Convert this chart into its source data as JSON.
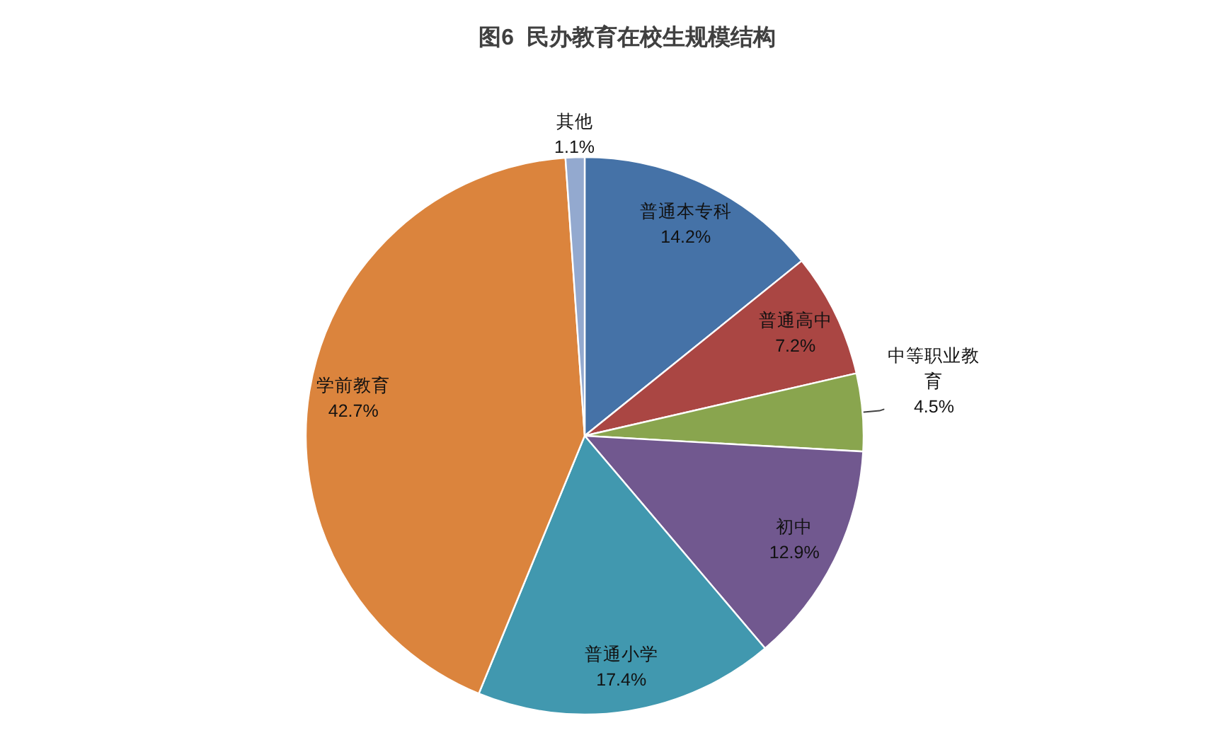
{
  "chart_data": {
    "type": "pie",
    "title": "图6  民办教育在校生规模结构",
    "categories": [
      "普通本专科",
      "普通高中",
      "中等职业教育",
      "初中",
      "普通小学",
      "学前教育",
      "其他"
    ],
    "values": [
      14.2,
      7.2,
      4.5,
      12.9,
      17.4,
      42.7,
      1.1
    ],
    "colors": [
      "#4572a7",
      "#aa4643",
      "#89a54e",
      "#71588f",
      "#4198af",
      "#db843d",
      "#93a9cf"
    ],
    "value_labels": [
      "14.2%",
      "7.2%",
      "4.5%",
      "12.9%",
      "17.4%",
      "42.7%",
      "1.1%"
    ]
  }
}
